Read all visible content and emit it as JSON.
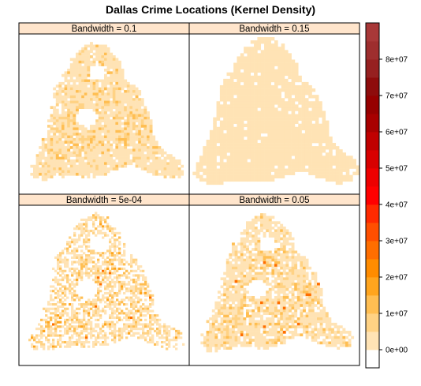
{
  "chart_data": {
    "type": "heatmap",
    "title": "Dallas Crime Locations  (Kernel Density)",
    "panels": [
      {
        "label": "Bandwidth = 0.1",
        "bandwidth": 0.1
      },
      {
        "label": "Bandwidth = 0.15",
        "bandwidth": 0.15
      },
      {
        "label": "Bandwidth = 5e-04",
        "bandwidth": 0.0005
      },
      {
        "label": "Bandwidth = 0.05",
        "bandwidth": 0.05
      }
    ],
    "colorkey": {
      "tick_labels": [
        "0e+00",
        "1e+07",
        "2e+07",
        "3e+07",
        "4e+07",
        "5e+07",
        "6e+07",
        "7e+07",
        "8e+07"
      ],
      "tick_values": [
        0,
        10000000,
        20000000,
        30000000,
        40000000,
        50000000,
        60000000,
        70000000,
        80000000
      ],
      "range": [
        -5000000,
        90000000
      ],
      "colors": [
        "#FFFFFF",
        "#FFE3B5",
        "#FFD284",
        "#FFBE52",
        "#FFA51E",
        "#FF8C00",
        "#FF6E00",
        "#FF4F00",
        "#FF2A00",
        "#FF0000",
        "#EE0000",
        "#D80000",
        "#C00000",
        "#A80000",
        "#960000",
        "#8E0C0C",
        "#962020",
        "#9E2E2E",
        "#A83838"
      ]
    },
    "panel_background_color": "#FFE5CC"
  }
}
